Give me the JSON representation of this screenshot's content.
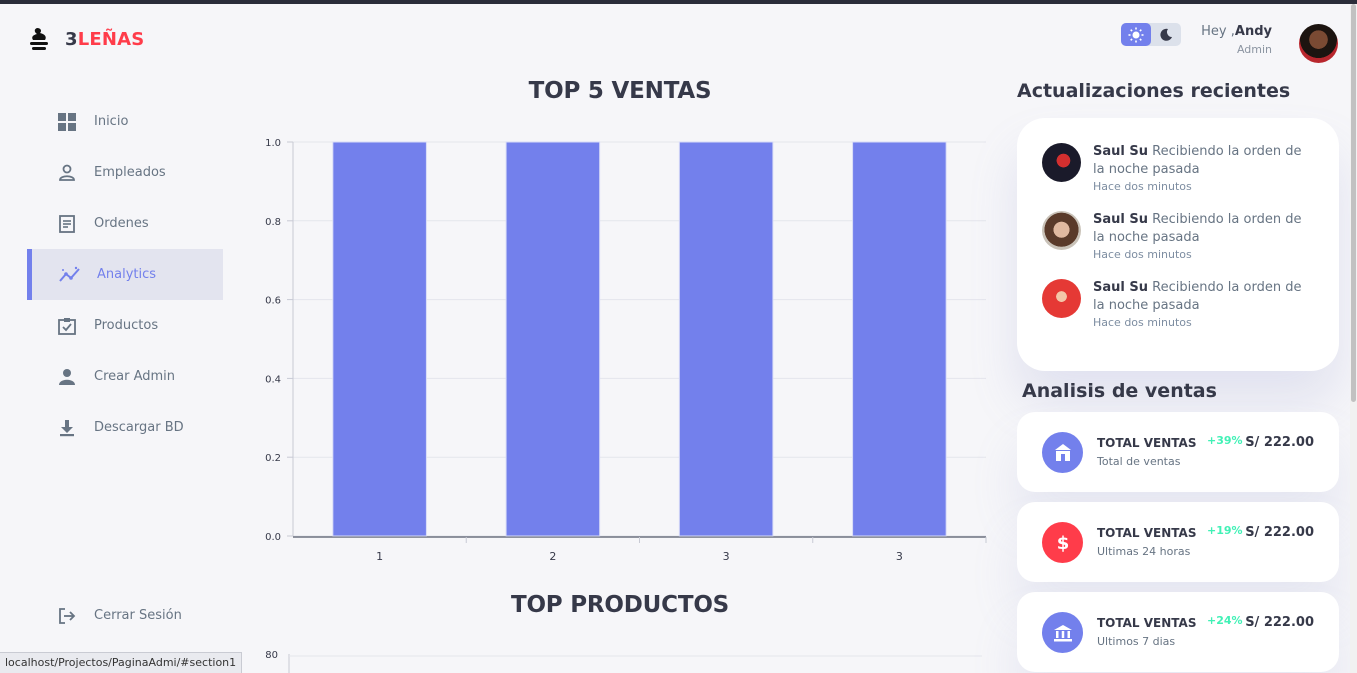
{
  "brand": {
    "prefix": "3",
    "accent": "LEÑAS"
  },
  "sidebar": {
    "items": [
      {
        "label": "Inicio",
        "icon": "grid-icon"
      },
      {
        "label": "Empleados",
        "icon": "person-outline-icon"
      },
      {
        "label": "Ordenes",
        "icon": "receipt-icon"
      },
      {
        "label": "Analytics",
        "icon": "insights-icon",
        "active": true
      },
      {
        "label": "Productos",
        "icon": "inventory-icon"
      },
      {
        "label": "Crear Admin",
        "icon": "person-icon"
      },
      {
        "label": "Descargar BD",
        "icon": "download-icon"
      }
    ],
    "logout": "Cerrar Sesión"
  },
  "header": {
    "greeting_prefix": "Hey ,",
    "user_name": "Andy",
    "role": "Admin"
  },
  "main": {
    "chart1_title": "TOP 5 VENTAS",
    "chart2_title": "TOP PRODUCTOS"
  },
  "chart_data": [
    {
      "type": "bar",
      "title": "TOP 5 VENTAS",
      "categories": [
        "1",
        "2",
        "3",
        "3"
      ],
      "values": [
        1.0,
        1.0,
        1.0,
        1.0
      ],
      "ylim": [
        0,
        1.0
      ],
      "yticks": [
        "0.0",
        "0.2",
        "0.4",
        "0.6",
        "0.8",
        "1.0"
      ],
      "grid": true,
      "color": "#7380ec"
    },
    {
      "type": "bar",
      "title": "TOP PRODUCTOS",
      "yticks": [
        "80"
      ]
    }
  ],
  "updates": {
    "title": "Actualizaciones recientes",
    "items": [
      {
        "name": "Saul Su",
        "message": "Recibiendo la orden de la noche pasada",
        "time": "Hace dos minutos"
      },
      {
        "name": "Saul Su",
        "message": "Recibiendo la orden de la noche pasada",
        "time": "Hace dos minutos"
      },
      {
        "name": "Saul Su",
        "message": "Recibiendo la orden de la noche pasada",
        "time": "Hace dos minutos"
      }
    ]
  },
  "sales": {
    "title": "Analisis de ventas",
    "cards": [
      {
        "label": "TOTAL VENTAS",
        "sub": "Total de ventas",
        "pct": "+39%",
        "amount": "S/ 222.00",
        "color": "#7380ec",
        "icon": "store-icon"
      },
      {
        "label": "TOTAL VENTAS",
        "sub": "Ultimas 24 horas",
        "pct": "+19%",
        "amount": "S/ 222.00",
        "color": "#ff3c4a",
        "icon": "dollar-icon"
      },
      {
        "label": "TOTAL VENTAS",
        "sub": "Ultimos 7 dias",
        "pct": "+24%",
        "amount": "S/ 222.00",
        "color": "#7380ec",
        "icon": "bank-icon"
      }
    ]
  },
  "status_url": "localhost/Projectos/PaginaAdmi/#section1"
}
